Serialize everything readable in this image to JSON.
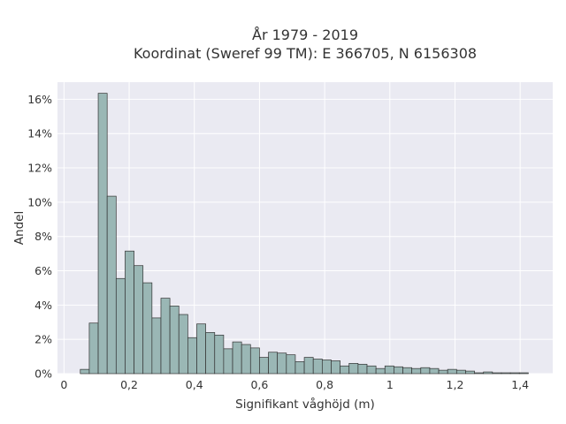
{
  "chart_data": {
    "type": "bar",
    "title": "År 1979 - 2019",
    "subtitle": "Koordinat (Sweref 99 TM): E 366705, N 6156308",
    "xlabel": "Signifikant våghöjd (m)",
    "ylabel": "Andel",
    "xlim": [
      -0.02,
      1.5
    ],
    "ylim": [
      0,
      0.17
    ],
    "x_ticks": [
      {
        "value": 0,
        "label": "0"
      },
      {
        "value": 0.2,
        "label": "0,2"
      },
      {
        "value": 0.4,
        "label": "0,4"
      },
      {
        "value": 0.6,
        "label": "0,6"
      },
      {
        "value": 0.8,
        "label": "0,8"
      },
      {
        "value": 1.0,
        "label": "1"
      },
      {
        "value": 1.2,
        "label": "1,2"
      },
      {
        "value": 1.4,
        "label": "1,4"
      }
    ],
    "y_ticks": [
      {
        "value": 0,
        "label": "0%"
      },
      {
        "value": 0.02,
        "label": "2%"
      },
      {
        "value": 0.04,
        "label": "4%"
      },
      {
        "value": 0.06,
        "label": "6%"
      },
      {
        "value": 0.08,
        "label": "8%"
      },
      {
        "value": 0.1,
        "label": "10%"
      },
      {
        "value": 0.12,
        "label": "12%"
      },
      {
        "value": 0.14,
        "label": "14%"
      },
      {
        "value": 0.16,
        "label": "16%"
      }
    ],
    "bin_start": 0.05,
    "bin_width": 0.0275,
    "values": [
      0.0025,
      0.0295,
      0.1635,
      0.1035,
      0.0555,
      0.0715,
      0.063,
      0.053,
      0.0325,
      0.044,
      0.0395,
      0.0345,
      0.021,
      0.029,
      0.024,
      0.0225,
      0.0145,
      0.0185,
      0.017,
      0.015,
      0.0095,
      0.0125,
      0.012,
      0.011,
      0.007,
      0.0095,
      0.0085,
      0.008,
      0.0075,
      0.0045,
      0.006,
      0.0055,
      0.0045,
      0.003,
      0.0045,
      0.004,
      0.0035,
      0.003,
      0.0035,
      0.003,
      0.002,
      0.0025,
      0.002,
      0.0015,
      0.0005,
      0.001,
      0.0005,
      0.0005,
      0.0005,
      0.0005
    ],
    "grid": true,
    "colors": {
      "bar_fill": "#9ab7b5",
      "bar_edge": "#333333",
      "plot_background": "#eaeaf2",
      "grid": "#ffffff"
    }
  }
}
